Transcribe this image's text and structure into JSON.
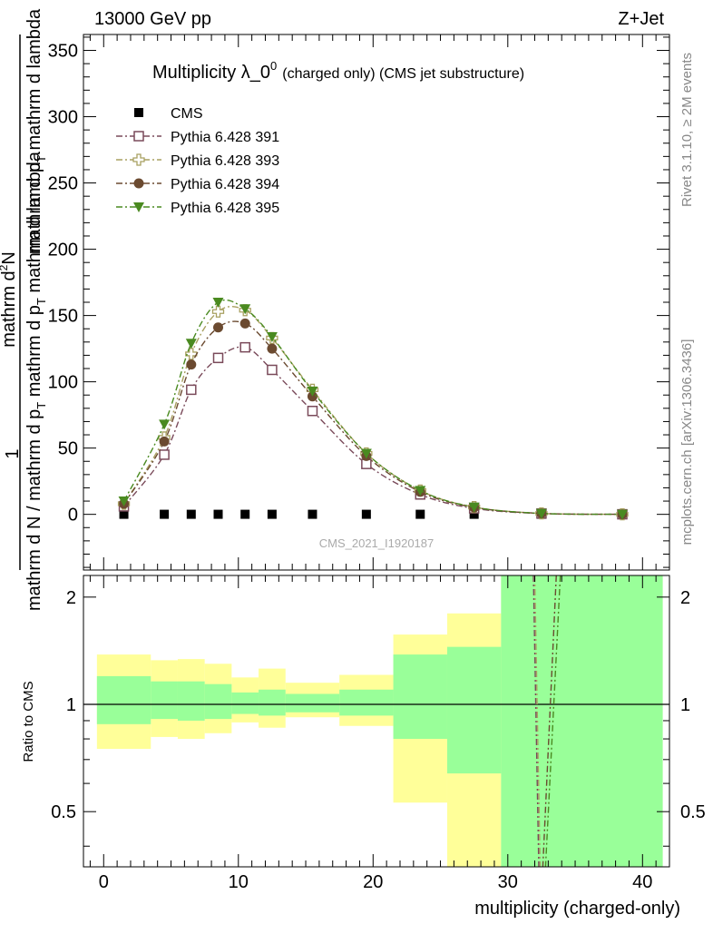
{
  "header": {
    "left": "13000 GeV pp",
    "right": "Z+Jet"
  },
  "side_labels": {
    "rivet": "Rivet 3.1.10, ≥ 2M events",
    "mcplots": "mcplots.cern.ch [arXiv:1306.3436]"
  },
  "colors": {
    "cms": "#000000",
    "p391": "#7a4a5a",
    "p393": "#a8a060",
    "p394": "#6b4a30",
    "p395": "#4a8a20",
    "band_yellow": "#ffff99",
    "band_green": "#99ff99"
  },
  "chart_data": [
    {
      "type": "line",
      "title": "Multiplicity λ_0⁰ (charged only) (CMS jet substructure)",
      "title_main": "Multiplicity λ_0",
      "title_sup": "0",
      "title_small": "(charged only) (CMS jet substructure)",
      "watermark": "CMS_2021_I1920187",
      "ylabel_line1": "mathrm d N / mathrm d p_T mathrm d p_T mathrm d lambda",
      "ylabel_parts": {
        "num": "mathrm d",
        "num_sup": "2",
        "num_tail": "N",
        "den": "mathrm d p",
        "den_sub": "T",
        "den_tail": " mathrm d lambda",
        "frac_one": "1",
        "lower": "mathrm d N / mathrm d p",
        "lower_sub": "T",
        "lower_tail": " mathrm d p",
        "lower_sub2": "T",
        "lower_tail2": " mathrm d lambda"
      },
      "xlim": [
        -1.5,
        42
      ],
      "ylim": [
        -42,
        362
      ],
      "yticks": [
        0,
        50,
        100,
        150,
        200,
        250,
        300,
        350
      ],
      "yticklabels": [
        "0",
        "50",
        "100",
        "150",
        "200",
        "250",
        "300",
        "350"
      ],
      "legend_position": "top-left",
      "series": [
        {
          "name": "CMS",
          "key": "cms",
          "marker": "filled-square",
          "x": [
            1.5,
            4.5,
            6.5,
            8.5,
            10.5,
            12.5,
            15.5,
            19.5,
            23.5,
            27.5,
            32.5,
            38.5
          ],
          "values": [
            0.05,
            0.05,
            0.05,
            0.05,
            0.05,
            0.05,
            0.05,
            0.05,
            0.05,
            0.05,
            0.05,
            0.05
          ]
        },
        {
          "name": "Pythia 6.428 391",
          "key": "p391",
          "marker": "open-square",
          "x": [
            1.5,
            4.5,
            6.5,
            8.5,
            10.5,
            12.5,
            15.5,
            19.5,
            23.5,
            27.5,
            32.5,
            38.5
          ],
          "values": [
            6,
            45,
            94,
            118,
            126,
            109,
            78,
            38,
            15,
            4.5,
            0.6,
            0.05
          ]
        },
        {
          "name": "Pythia 6.428 393",
          "key": "p393",
          "marker": "open-cross",
          "x": [
            1.5,
            4.5,
            6.5,
            8.5,
            10.5,
            12.5,
            15.5,
            19.5,
            23.5,
            27.5,
            32.5,
            38.5
          ],
          "values": [
            8,
            58,
            121,
            153,
            154,
            133,
            94,
            46,
            18,
            5.5,
            0.7,
            0.05
          ]
        },
        {
          "name": "Pythia 6.428 394",
          "key": "p394",
          "marker": "filled-circle",
          "x": [
            1.5,
            4.5,
            6.5,
            8.5,
            10.5,
            12.5,
            15.5,
            19.5,
            23.5,
            27.5,
            32.5,
            38.5
          ],
          "values": [
            8,
            55,
            113,
            141,
            144,
            125,
            89,
            44,
            17,
            5.2,
            0.7,
            0.05
          ]
        },
        {
          "name": "Pythia 6.428 395",
          "key": "p395",
          "marker": "filled-triangle-down",
          "x": [
            1.5,
            4.5,
            6.5,
            8.5,
            10.5,
            12.5,
            15.5,
            19.5,
            23.5,
            27.5,
            32.5,
            38.5
          ],
          "values": [
            10,
            68,
            129,
            160,
            155,
            134,
            93,
            46,
            18,
            5.5,
            0.7,
            0.05
          ]
        }
      ]
    },
    {
      "type": "area",
      "title": "",
      "ylabel": "Ratio to CMS",
      "xlabel": "multiplicity (charged-only)",
      "xlim": [
        -1.5,
        42
      ],
      "ylim": [
        0.35,
        2.3
      ],
      "xticks": [
        0,
        10,
        20,
        30,
        40
      ],
      "xticklabels": [
        "0",
        "10",
        "20",
        "30",
        "40"
      ],
      "yticks": [
        0.5,
        1,
        2
      ],
      "yticklabels": [
        "0.5",
        "1",
        "2"
      ],
      "reference_line": 1,
      "bins": [
        {
          "lo": -0.5,
          "hi": 3.5,
          "y_lo": 0.75,
          "y_hi": 1.38,
          "g_lo": 0.88,
          "g_hi": 1.2
        },
        {
          "lo": 3.5,
          "hi": 5.5,
          "y_lo": 0.81,
          "y_hi": 1.33,
          "g_lo": 0.91,
          "g_hi": 1.16
        },
        {
          "lo": 5.5,
          "hi": 7.5,
          "y_lo": 0.8,
          "y_hi": 1.34,
          "g_lo": 0.9,
          "g_hi": 1.16
        },
        {
          "lo": 7.5,
          "hi": 9.5,
          "y_lo": 0.83,
          "y_hi": 1.3,
          "g_lo": 0.91,
          "g_hi": 1.14
        },
        {
          "lo": 9.5,
          "hi": 11.5,
          "y_lo": 0.89,
          "y_hi": 1.19,
          "g_lo": 0.94,
          "g_hi": 1.08
        },
        {
          "lo": 11.5,
          "hi": 13.5,
          "y_lo": 0.86,
          "y_hi": 1.26,
          "g_lo": 0.93,
          "g_hi": 1.1
        },
        {
          "lo": 13.5,
          "hi": 17.5,
          "y_lo": 0.92,
          "y_hi": 1.15,
          "g_lo": 0.95,
          "g_hi": 1.07
        },
        {
          "lo": 17.5,
          "hi": 21.5,
          "y_lo": 0.87,
          "y_hi": 1.21,
          "g_lo": 0.93,
          "g_hi": 1.1
        },
        {
          "lo": 21.5,
          "hi": 25.5,
          "y_lo": 0.53,
          "y_hi": 1.57,
          "g_lo": 0.8,
          "g_hi": 1.38
        },
        {
          "lo": 25.5,
          "hi": 29.5,
          "y_lo": 0.35,
          "y_hi": 1.8,
          "g_lo": 0.64,
          "g_hi": 1.45
        },
        {
          "lo": 29.5,
          "hi": 41.5,
          "y_lo": 0.35,
          "y_hi": 2.3,
          "g_lo": 0.35,
          "g_hi": 2.3
        }
      ],
      "ratio_lines": [
        {
          "key": "p391",
          "points": [
            [
              31.9,
              2.3
            ],
            [
              32.3,
              0.35
            ]
          ]
        },
        {
          "key": "p393",
          "points": [
            [
              32.0,
              2.3
            ],
            [
              32.4,
              0.35
            ]
          ]
        },
        {
          "key": "p394",
          "points": [
            [
              33.6,
              2.3
            ],
            [
              32.6,
              0.35
            ]
          ]
        },
        {
          "key": "p395",
          "points": [
            [
              33.9,
              2.3
            ],
            [
              32.8,
              0.35
            ]
          ]
        }
      ]
    }
  ]
}
